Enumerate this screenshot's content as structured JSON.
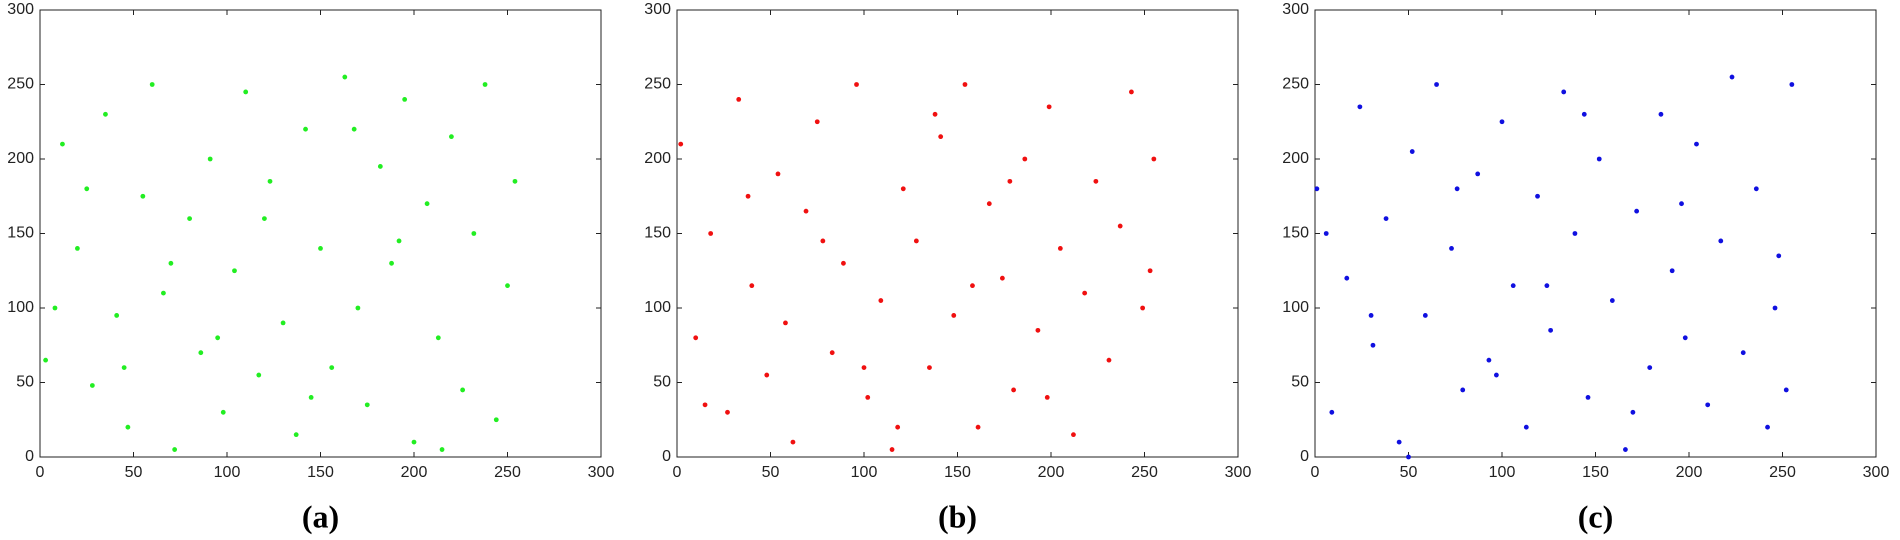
{
  "chart_data": [
    {
      "type": "scatter",
      "caption": "(a)",
      "color": "#22ee22",
      "xlim": [
        0,
        300
      ],
      "ylim": [
        0,
        300
      ],
      "xticks": [
        0,
        50,
        100,
        150,
        200,
        250,
        300
      ],
      "yticks": [
        0,
        50,
        100,
        150,
        200,
        250,
        300
      ],
      "x": [
        3,
        12,
        20,
        28,
        35,
        41,
        47,
        55,
        60,
        66,
        72,
        80,
        86,
        91,
        98,
        104,
        110,
        117,
        123,
        130,
        137,
        142,
        150,
        156,
        163,
        170,
        175,
        182,
        188,
        195,
        200,
        207,
        213,
        220,
        226,
        232,
        238,
        244,
        250,
        254,
        8,
        25,
        45,
        70,
        95,
        120,
        145,
        168,
        192,
        215
      ],
      "values": [
        65,
        210,
        140,
        48,
        230,
        95,
        20,
        175,
        250,
        110,
        5,
        160,
        70,
        200,
        30,
        125,
        245,
        55,
        185,
        90,
        15,
        220,
        140,
        60,
        255,
        100,
        35,
        195,
        130,
        240,
        10,
        170,
        80,
        215,
        45,
        150,
        250,
        25,
        115,
        185,
        100,
        180,
        60,
        130,
        80,
        160,
        40,
        220,
        145,
        5
      ]
    },
    {
      "type": "scatter",
      "caption": "(b)",
      "color": "#f01010",
      "xlim": [
        0,
        300
      ],
      "ylim": [
        0,
        300
      ],
      "xticks": [
        0,
        50,
        100,
        150,
        200,
        250,
        300
      ],
      "yticks": [
        0,
        50,
        100,
        150,
        200,
        250,
        300
      ],
      "x": [
        2,
        10,
        18,
        27,
        33,
        40,
        48,
        54,
        62,
        69,
        75,
        83,
        89,
        96,
        102,
        109,
        115,
        121,
        128,
        135,
        141,
        148,
        154,
        161,
        167,
        174,
        180,
        186,
        193,
        199,
        205,
        212,
        218,
        224,
        231,
        237,
        243,
        249,
        253,
        255,
        15,
        38,
        58,
        78,
        100,
        118,
        138,
        158,
        178,
        198
      ],
      "values": [
        210,
        80,
        150,
        30,
        240,
        115,
        55,
        190,
        10,
        165,
        225,
        70,
        130,
        250,
        40,
        105,
        5,
        180,
        145,
        60,
        215,
        95,
        250,
        20,
        170,
        120,
        45,
        200,
        85,
        235,
        140,
        15,
        110,
        185,
        65,
        155,
        245,
        100,
        125,
        200,
        35,
        175,
        90,
        145,
        60,
        20,
        230,
        115,
        185,
        40
      ]
    },
    {
      "type": "scatter",
      "caption": "(c)",
      "color": "#1010e0",
      "xlim": [
        0,
        300
      ],
      "ylim": [
        0,
        300
      ],
      "xticks": [
        0,
        50,
        100,
        150,
        200,
        250,
        300
      ],
      "yticks": [
        0,
        50,
        100,
        150,
        200,
        250,
        300
      ],
      "x": [
        1,
        9,
        17,
        24,
        31,
        38,
        45,
        52,
        59,
        65,
        73,
        79,
        87,
        93,
        100,
        106,
        113,
        119,
        126,
        133,
        139,
        146,
        152,
        159,
        166,
        172,
        179,
        185,
        191,
        198,
        204,
        210,
        217,
        223,
        229,
        236,
        242,
        248,
        252,
        255,
        6,
        30,
        50,
        76,
        97,
        124,
        144,
        170,
        196,
        246
      ],
      "values": [
        180,
        30,
        120,
        235,
        75,
        160,
        10,
        205,
        95,
        250,
        140,
        45,
        190,
        65,
        225,
        115,
        20,
        175,
        85,
        245,
        150,
        40,
        200,
        105,
        5,
        165,
        60,
        230,
        125,
        80,
        210,
        35,
        145,
        255,
        70,
        180,
        20,
        135,
        45,
        250,
        150,
        95,
        0,
        180,
        55,
        115,
        230,
        30,
        170,
        100
      ]
    }
  ]
}
